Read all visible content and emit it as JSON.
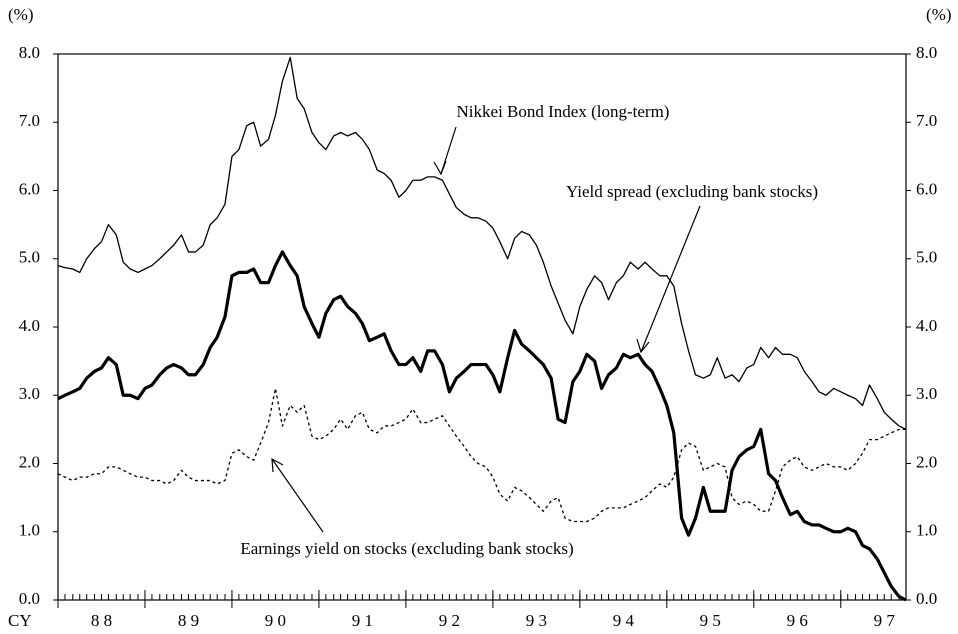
{
  "chart_data": {
    "type": "line",
    "y_unit": "(%)",
    "y2_unit": "(%)",
    "x_axis_prefix": "CY",
    "xlim": [
      1988,
      1997.75
    ],
    "ylim": [
      0,
      8
    ],
    "y2lim": [
      0,
      8
    ],
    "xticks": [
      {
        "value": 1988,
        "label": "8 8"
      },
      {
        "value": 1989,
        "label": "8 9"
      },
      {
        "value": 1990,
        "label": "9 0"
      },
      {
        "value": 1991,
        "label": "9 1"
      },
      {
        "value": 1992,
        "label": "9 2"
      },
      {
        "value": 1993,
        "label": "9 3"
      },
      {
        "value": 1994,
        "label": "9 4"
      },
      {
        "value": 1995,
        "label": "9 5"
      },
      {
        "value": 1996,
        "label": "9 6"
      },
      {
        "value": 1997,
        "label": "9 7"
      }
    ],
    "yticks": [
      {
        "value": 0,
        "label": "0.0"
      },
      {
        "value": 1,
        "label": "1.0"
      },
      {
        "value": 2,
        "label": "2.0"
      },
      {
        "value": 3,
        "label": "3.0"
      },
      {
        "value": 4,
        "label": "4.0"
      },
      {
        "value": 5,
        "label": "5.0"
      },
      {
        "value": 6,
        "label": "6.0"
      },
      {
        "value": 7,
        "label": "7.0"
      },
      {
        "value": 8,
        "label": "8.0"
      }
    ],
    "y2ticks": [
      {
        "value": 0,
        "label": "0.0"
      },
      {
        "value": 1,
        "label": "1.0"
      },
      {
        "value": 2,
        "label": "2.0"
      },
      {
        "value": 3,
        "label": "3.0"
      },
      {
        "value": 4,
        "label": "4.0"
      },
      {
        "value": 5,
        "label": "5.0"
      },
      {
        "value": 6,
        "label": "6.0"
      },
      {
        "value": 7,
        "label": "7.0"
      },
      {
        "value": 8,
        "label": "8.0"
      }
    ],
    "x": [
      1988.0,
      1988.08,
      1988.17,
      1988.25,
      1988.33,
      1988.42,
      1988.5,
      1988.58,
      1988.67,
      1988.75,
      1988.83,
      1988.92,
      1989.0,
      1989.08,
      1989.17,
      1989.25,
      1989.33,
      1989.42,
      1989.5,
      1989.58,
      1989.67,
      1989.75,
      1989.83,
      1989.92,
      1990.0,
      1990.08,
      1990.17,
      1990.25,
      1990.33,
      1990.42,
      1990.5,
      1990.58,
      1990.67,
      1990.75,
      1990.83,
      1990.92,
      1991.0,
      1991.08,
      1991.17,
      1991.25,
      1991.33,
      1991.42,
      1991.5,
      1991.58,
      1991.67,
      1991.75,
      1991.83,
      1991.92,
      1992.0,
      1992.08,
      1992.17,
      1992.25,
      1992.33,
      1992.42,
      1992.5,
      1992.58,
      1992.67,
      1992.75,
      1992.83,
      1992.92,
      1993.0,
      1993.08,
      1993.17,
      1993.25,
      1993.33,
      1993.42,
      1993.5,
      1993.58,
      1993.67,
      1993.75,
      1993.83,
      1993.92,
      1994.0,
      1994.08,
      1994.17,
      1994.25,
      1994.33,
      1994.42,
      1994.5,
      1994.58,
      1994.67,
      1994.75,
      1994.83,
      1994.92,
      1995.0,
      1995.08,
      1995.17,
      1995.25,
      1995.33,
      1995.42,
      1995.5,
      1995.58,
      1995.67,
      1995.75,
      1995.83,
      1995.92,
      1996.0,
      1996.08,
      1996.17,
      1996.25,
      1996.33,
      1996.42,
      1996.5,
      1996.58,
      1996.67,
      1996.75,
      1996.83,
      1996.92,
      1997.0,
      1997.08,
      1997.17,
      1997.25,
      1997.33,
      1997.42,
      1997.5,
      1997.58,
      1997.67,
      1997.75
    ],
    "series": [
      {
        "name": "Nikkei Bond Index (long-term)",
        "color": "#000000",
        "line_width": 1.3,
        "dashed": false,
        "values": [
          4.9,
          4.87,
          4.85,
          4.8,
          5.0,
          5.15,
          5.25,
          5.5,
          5.35,
          4.95,
          4.85,
          4.8,
          4.85,
          4.9,
          5.0,
          5.1,
          5.2,
          5.35,
          5.1,
          5.1,
          5.2,
          5.5,
          5.6,
          5.8,
          6.5,
          6.6,
          6.95,
          7.0,
          6.65,
          6.75,
          7.1,
          7.6,
          7.95,
          7.35,
          7.2,
          6.85,
          6.7,
          6.6,
          6.8,
          6.85,
          6.8,
          6.85,
          6.75,
          6.6,
          6.3,
          6.25,
          6.15,
          5.9,
          6.0,
          6.15,
          6.15,
          6.2,
          6.2,
          6.15,
          5.95,
          5.75,
          5.65,
          5.6,
          5.6,
          5.55,
          5.45,
          5.25,
          5.0,
          5.3,
          5.4,
          5.35,
          5.2,
          4.95,
          4.6,
          4.35,
          4.1,
          3.9,
          4.3,
          4.55,
          4.75,
          4.65,
          4.4,
          4.65,
          4.75,
          4.95,
          4.85,
          4.95,
          4.85,
          4.75,
          4.75,
          4.6,
          4.05,
          3.65,
          3.3,
          3.25,
          3.3,
          3.55,
          3.25,
          3.3,
          3.2,
          3.4,
          3.45,
          3.7,
          3.55,
          3.7,
          3.6,
          3.6,
          3.55,
          3.35,
          3.2,
          3.05,
          3.0,
          3.1,
          3.05,
          3.0,
          2.95,
          2.85,
          3.15,
          2.95,
          2.75,
          2.65,
          2.55,
          2.5
        ]
      },
      {
        "name": "Yield spread (excluding bank stocks)",
        "color": "#000000",
        "line_width": 3.2,
        "dashed": false,
        "values": [
          2.95,
          3.0,
          3.05,
          3.1,
          3.25,
          3.35,
          3.4,
          3.55,
          3.45,
          3.0,
          3.0,
          2.95,
          3.1,
          3.15,
          3.3,
          3.4,
          3.45,
          3.4,
          3.3,
          3.3,
          3.45,
          3.7,
          3.85,
          4.15,
          4.75,
          4.8,
          4.8,
          4.85,
          4.65,
          4.65,
          4.9,
          5.1,
          4.9,
          4.75,
          4.3,
          4.05,
          3.85,
          4.2,
          4.4,
          4.45,
          4.3,
          4.2,
          4.05,
          3.8,
          3.85,
          3.9,
          3.65,
          3.45,
          3.45,
          3.55,
          3.35,
          3.65,
          3.65,
          3.45,
          3.05,
          3.25,
          3.35,
          3.45,
          3.45,
          3.45,
          3.3,
          3.05,
          3.55,
          3.95,
          3.75,
          3.65,
          3.55,
          3.45,
          3.25,
          2.65,
          2.6,
          3.2,
          3.35,
          3.6,
          3.5,
          3.1,
          3.3,
          3.4,
          3.6,
          3.55,
          3.6,
          3.45,
          3.35,
          3.1,
          2.85,
          2.45,
          1.2,
          0.95,
          1.2,
          1.65,
          1.3,
          1.3,
          1.3,
          1.9,
          2.1,
          2.2,
          2.25,
          2.5,
          1.85,
          1.75,
          1.5,
          1.25,
          1.3,
          1.15,
          1.1,
          1.1,
          1.05,
          1.0,
          1.0,
          1.05,
          1.0,
          0.8,
          0.75,
          0.6,
          0.4,
          0.2,
          0.05,
          0.0
        ]
      },
      {
        "name": "Earnings yield on stocks (excluding bank stocks)",
        "color": "#000000",
        "line_width": 1.3,
        "dashed": true,
        "values": [
          1.85,
          1.8,
          1.75,
          1.8,
          1.8,
          1.85,
          1.85,
          1.95,
          1.95,
          1.9,
          1.85,
          1.8,
          1.8,
          1.75,
          1.75,
          1.7,
          1.75,
          1.9,
          1.8,
          1.75,
          1.75,
          1.75,
          1.7,
          1.75,
          2.15,
          2.2,
          2.1,
          2.05,
          2.3,
          2.6,
          3.1,
          2.55,
          2.85,
          2.75,
          2.85,
          2.4,
          2.35,
          2.4,
          2.5,
          2.65,
          2.5,
          2.7,
          2.75,
          2.5,
          2.45,
          2.55,
          2.55,
          2.6,
          2.65,
          2.8,
          2.6,
          2.6,
          2.65,
          2.7,
          2.55,
          2.4,
          2.25,
          2.1,
          2.0,
          1.95,
          1.8,
          1.55,
          1.45,
          1.65,
          1.6,
          1.5,
          1.4,
          1.3,
          1.45,
          1.5,
          1.2,
          1.15,
          1.15,
          1.15,
          1.2,
          1.3,
          1.35,
          1.35,
          1.35,
          1.4,
          1.45,
          1.5,
          1.6,
          1.7,
          1.65,
          1.8,
          2.2,
          2.3,
          2.25,
          1.9,
          1.95,
          2.0,
          1.95,
          1.5,
          1.4,
          1.45,
          1.4,
          1.3,
          1.3,
          1.6,
          1.95,
          2.05,
          2.1,
          1.95,
          1.9,
          1.95,
          2.0,
          1.95,
          1.95,
          1.9,
          2.0,
          2.15,
          2.35,
          2.35,
          2.4,
          2.45,
          2.5,
          2.5
        ]
      }
    ]
  }
}
